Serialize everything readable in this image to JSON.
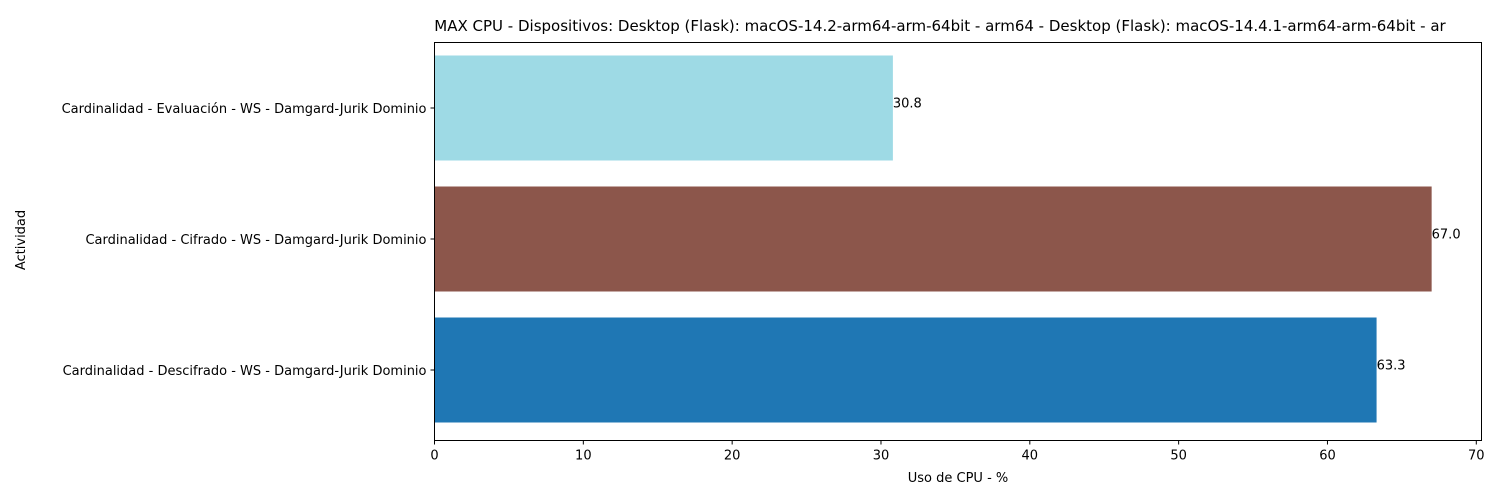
{
  "chart_data": {
    "type": "bar",
    "orientation": "horizontal",
    "title": "MAX CPU - Dispositivos: Desktop (Flask): macOS-14.2-arm64-arm-64bit - arm64 - Desktop (Flask): macOS-14.4.1-arm64-arm-64bit - ar",
    "xlabel": "Uso de CPU - %",
    "ylabel": "Actividad",
    "xlim": [
      0,
      70.35
    ],
    "x_ticks": [
      0,
      10,
      20,
      30,
      40,
      50,
      60,
      70
    ],
    "grid": false,
    "categories": [
      "Cardinalidad - Evaluación - WS - Damgard-Jurik Dominio",
      "Cardinalidad - Cifrado - WS - Damgard-Jurik Dominio",
      "Cardinalidad - Descifrado - WS - Damgard-Jurik Dominio"
    ],
    "values": [
      30.8,
      67.0,
      63.3
    ],
    "value_labels": [
      "30.8",
      "67.0",
      "63.3"
    ],
    "colors": [
      "#9edae5",
      "#8c564b",
      "#1f77b4"
    ]
  }
}
